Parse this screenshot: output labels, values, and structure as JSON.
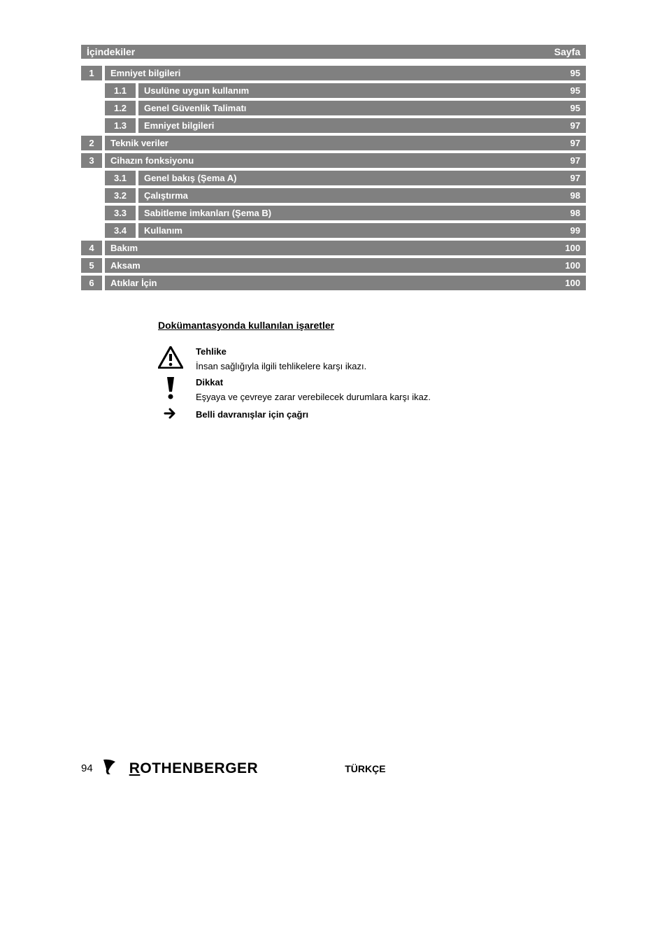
{
  "toc": {
    "header_left": "İçindekiler",
    "header_right": "Sayfa",
    "rows": [
      {
        "type": "main",
        "num": "1",
        "title": "Emniyet bilgileri",
        "page": "95"
      },
      {
        "type": "sub",
        "num": "1.1",
        "title": "Usulüne uygun kullanım",
        "page": "95"
      },
      {
        "type": "sub",
        "num": "1.2",
        "title": "Genel Güvenlik Talimatı",
        "page": "95"
      },
      {
        "type": "sub",
        "num": "1.3",
        "title": "Emniyet bilgileri",
        "page": "97"
      },
      {
        "type": "main",
        "num": "2",
        "title": "Teknik veriler",
        "page": "97"
      },
      {
        "type": "main",
        "num": "3",
        "title": "Cihazın fonksiyonu",
        "page": "97"
      },
      {
        "type": "sub",
        "num": "3.1",
        "title": "Genel bakış (Şema A)",
        "page": "97"
      },
      {
        "type": "sub",
        "num": "3.2",
        "title": "Çalıştırma",
        "page": "98"
      },
      {
        "type": "sub",
        "num": "3.3",
        "title": "Sabitleme imkanları (Şema B)",
        "page": "98"
      },
      {
        "type": "sub",
        "num": "3.4",
        "title": "Kullanım",
        "page": "99"
      },
      {
        "type": "main",
        "num": "4",
        "title": "Bakım",
        "page": "100"
      },
      {
        "type": "main",
        "num": "5",
        "title": "Aksam",
        "page": "100"
      },
      {
        "type": "main",
        "num": "6",
        "title": "Atıklar İçin",
        "page": "100"
      }
    ]
  },
  "section_heading": "Dokümantasyonda kullanılan işaretler",
  "notes": {
    "danger_title": "Tehlike",
    "danger_body": "İnsan sağlığıyla ilgili tehlikelere karşı ikazı.",
    "attention_title": "Dikkat",
    "attention_body": "Eşyaya ve çevreye zarar verebilecek durumlara karşı ikaz.",
    "arrow_title": "Belli davranışlar için çağrı"
  },
  "footer": {
    "page_number": "94",
    "brand": "ROTHENBERGER",
    "language": "TÜRKÇE"
  },
  "colors": {
    "row_bg": "#808080",
    "row_text": "#ffffff",
    "page_bg": "#ffffff",
    "body_text": "#000000"
  }
}
